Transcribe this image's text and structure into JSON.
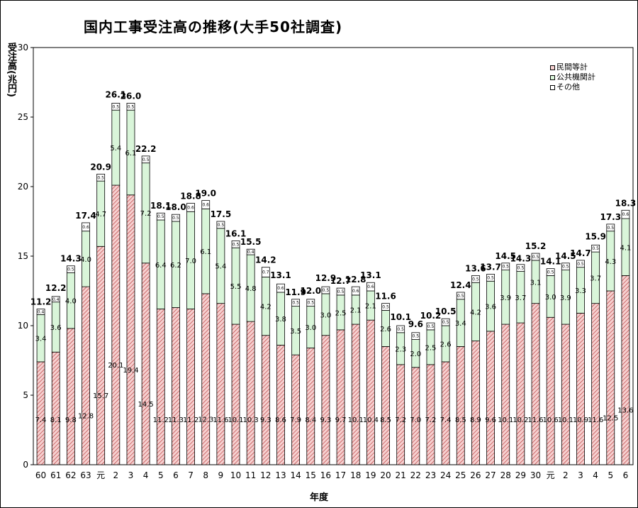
{
  "chart_data": {
    "type": "bar",
    "stacked": true,
    "title": "国内工事受注高の推移(大手50社調査)",
    "ylabel": "受注高(兆円)",
    "xlabel": "年度",
    "ylim": [
      0,
      30
    ],
    "yticks": [
      "0",
      "5",
      "10",
      "15",
      "20",
      "25",
      "30"
    ],
    "categories": [
      "60",
      "61",
      "62",
      "63",
      "元",
      "2",
      "3",
      "4",
      "5",
      "6",
      "7",
      "8",
      "9",
      "10",
      "11",
      "12",
      "13",
      "14",
      "15",
      "16",
      "17",
      "18",
      "19",
      "20",
      "21",
      "22",
      "23",
      "24",
      "25",
      "26",
      "27",
      "28",
      "29",
      "30",
      "元",
      "2",
      "3",
      "4",
      "5",
      "6"
    ],
    "series": [
      {
        "name": "民間等計",
        "color": "#f4c6c6",
        "hatch": "#c03030",
        "values": [
          7.4,
          8.1,
          9.8,
          12.8,
          15.7,
          20.1,
          19.4,
          14.5,
          11.2,
          11.3,
          11.2,
          12.3,
          11.6,
          10.1,
          10.3,
          9.3,
          8.6,
          7.9,
          8.4,
          9.3,
          9.7,
          10.1,
          10.4,
          8.5,
          7.2,
          7.0,
          7.2,
          7.4,
          8.5,
          8.9,
          9.6,
          10.1,
          10.2,
          11.6,
          10.6,
          10.1,
          10.9,
          11.6,
          12.5,
          13.6
        ],
        "labels": [
          "7.4",
          "8.1",
          "9.8",
          "12.8",
          "15.7",
          "20.1",
          "19.4",
          "14.5",
          "11.2",
          "11.3",
          "11.2",
          "12.3",
          "11.6",
          "10.1",
          "10.3",
          "9.3",
          "8.6",
          "7.9",
          "8.4",
          "9.3",
          "9.7",
          "10.1",
          "10.4",
          "8.5",
          "7.2",
          "7.0",
          "7.2",
          "7.4",
          "8.5",
          "8.9",
          "9.6",
          "10.1",
          "10.2",
          "11.6",
          "10.6",
          "10.1",
          "10.9",
          "11.6",
          "12.5",
          "13.6"
        ]
      },
      {
        "name": "公共機関計",
        "color": "#d9f5d9",
        "hatch": null,
        "values": [
          3.4,
          3.6,
          4.0,
          4.0,
          4.7,
          5.4,
          6.1,
          7.2,
          6.4,
          6.2,
          7.0,
          6.1,
          5.4,
          5.5,
          4.8,
          4.2,
          3.8,
          3.5,
          3.0,
          3.0,
          2.5,
          2.1,
          2.1,
          2.6,
          2.3,
          2.0,
          2.5,
          2.6,
          3.4,
          4.2,
          3.6,
          3.9,
          3.7,
          3.1,
          3.0,
          3.9,
          3.3,
          3.7,
          4.3,
          4.1
        ],
        "labels": [
          "3.4",
          "3.6",
          "4.0",
          "4.0",
          "4.7",
          "5.4",
          "6.1",
          "7.2",
          "6.4",
          "6.2",
          "7.0",
          "6.1",
          "5.4",
          "5.5",
          "4.8",
          "4.2",
          "3.8",
          "3.5",
          "3.0",
          "3.0",
          "2.5",
          "2.1",
          "2.1",
          "2.6",
          "2.3",
          "2.0",
          "2.5",
          "2.6",
          "3.4",
          "4.2",
          "3.6",
          "3.9",
          "3.7",
          "3.1",
          "3.0",
          "3.9",
          "3.3",
          "3.7",
          "4.3",
          "4.1"
        ]
      },
      {
        "name": "その他",
        "color": "#ffffff",
        "hatch": null,
        "values": [
          0.4,
          0.4,
          0.5,
          0.6,
          0.5,
          0.5,
          0.5,
          0.5,
          0.5,
          0.5,
          0.6,
          0.6,
          0.5,
          0.5,
          0.4,
          0.7,
          0.6,
          0.5,
          0.5,
          0.5,
          0.5,
          0.6,
          0.6,
          0.5,
          0.5,
          0.5,
          0.5,
          0.5,
          0.5,
          0.5,
          0.5,
          0.5,
          0.5,
          0.5,
          0.5,
          0.5,
          0.5,
          0.5,
          0.5,
          0.6
        ],
        "labels": [
          "0.4",
          "0.4",
          "0.5",
          "0.6",
          "0.5",
          "0.5",
          "0.5",
          "0.5",
          "0.5",
          "0.5",
          "0.6",
          "0.6",
          "0.5",
          "0.5",
          "0.4",
          "0.7",
          "0.6",
          "0.5",
          "0.5",
          "0.5",
          "0.5",
          "0.6",
          "0.6",
          "0.5",
          "0.5",
          "0.5",
          "0.5",
          "0.5",
          "0.5",
          "0.5",
          "0.5",
          "0.5",
          "0.5",
          "0.5",
          "0.5",
          "0.5",
          "0.5",
          "0.5",
          "0.5",
          "0.6"
        ]
      }
    ],
    "totals": [
      11.2,
      12.2,
      14.3,
      17.4,
      20.9,
      26.1,
      26.0,
      22.2,
      18.1,
      18.0,
      18.8,
      19.0,
      17.5,
      16.1,
      15.5,
      14.2,
      13.1,
      11.9,
      12.0,
      12.9,
      12.7,
      12.8,
      13.1,
      11.6,
      10.1,
      9.6,
      10.2,
      10.5,
      12.4,
      13.6,
      13.7,
      14.5,
      14.3,
      15.2,
      14.1,
      14.5,
      14.7,
      15.9,
      17.3,
      18.3
    ],
    "total_labels": [
      "11.2",
      "12.2",
      "14.3",
      "17.4",
      "20.9",
      "26.1",
      "26.0",
      "22.2",
      "18.1",
      "18.0",
      "18.8",
      "19.0",
      "17.5",
      "16.1",
      "15.5",
      "14.2",
      "13.1",
      "11.9",
      "12.0",
      "12.9",
      "12.7",
      "12.8",
      "13.1",
      "11.6",
      "10.1",
      "9.6",
      "10.2",
      "10.5",
      "12.4",
      "13.6",
      "13.7",
      "14.5",
      "14.3",
      "15.2",
      "14.1",
      "14.5",
      "14.7",
      "15.9",
      "17.3",
      "18.3"
    ],
    "legend_position": "top-right"
  }
}
